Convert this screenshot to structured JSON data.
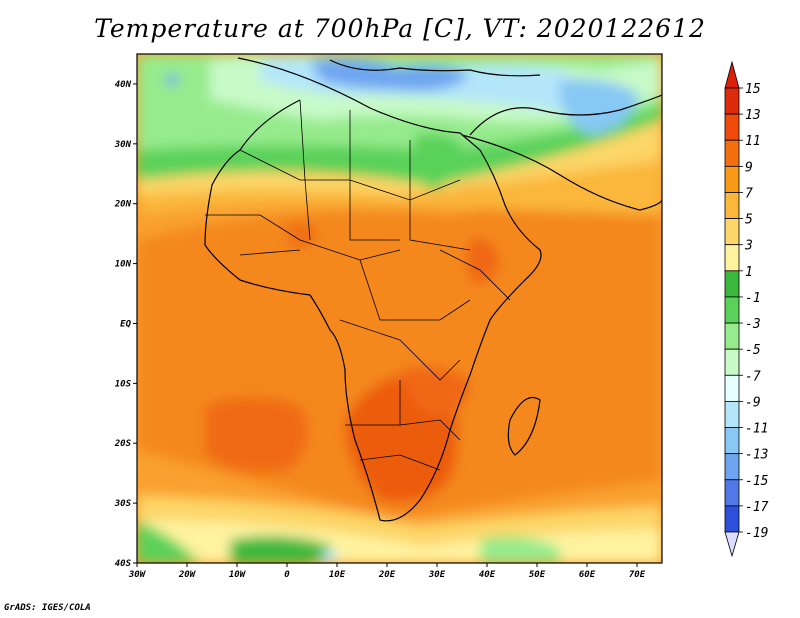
{
  "title": "Temperature at 700hPa [C], VT: 2020122612",
  "footer": "GrADS: IGES/COLA",
  "map": {
    "lon_range": [
      -30,
      75
    ],
    "lat_range": [
      -40,
      45
    ],
    "lon_ticks": [
      {
        "value": -30,
        "label": "30W"
      },
      {
        "value": -20,
        "label": "20W"
      },
      {
        "value": -10,
        "label": "10W"
      },
      {
        "value": 0,
        "label": "0"
      },
      {
        "value": 10,
        "label": "10E"
      },
      {
        "value": 20,
        "label": "20E"
      },
      {
        "value": 30,
        "label": "30E"
      },
      {
        "value": 40,
        "label": "40E"
      },
      {
        "value": 50,
        "label": "50E"
      },
      {
        "value": 60,
        "label": "60E"
      },
      {
        "value": 70,
        "label": "70E"
      }
    ],
    "lat_ticks": [
      {
        "value": 40,
        "label": "40N"
      },
      {
        "value": 30,
        "label": "30N"
      },
      {
        "value": 20,
        "label": "20N"
      },
      {
        "value": 10,
        "label": "10N"
      },
      {
        "value": 0,
        "label": "EQ"
      },
      {
        "value": -10,
        "label": "10S"
      },
      {
        "value": -20,
        "label": "20S"
      },
      {
        "value": -30,
        "label": "30S"
      },
      {
        "value": -40,
        "label": "40S"
      }
    ]
  },
  "colorbar": {
    "labels": [
      "15",
      "13",
      "11",
      "9",
      "7",
      "5",
      "3",
      "1",
      "-1",
      "-3",
      "-5",
      "-7",
      "-9",
      "-11",
      "-13",
      "-15",
      "-17",
      "-19"
    ],
    "colors_top_to_bottom": [
      "#a50f05",
      "#dc2c0c",
      "#f04a0c",
      "#f4700e",
      "#f99a16",
      "#fab73a",
      "#fcd668",
      "#fff3a0",
      "#3cb93c",
      "#5ad25a",
      "#96eb8c",
      "#c8fac8",
      "#e6ffff",
      "#b4e6fa",
      "#87c8f5",
      "#6ea5f0",
      "#5078e6",
      "#2d50dc",
      "#1e32be",
      "#141496",
      "#c8d2fa"
    ],
    "colors": {
      "overflow_top": "#dc1e0a",
      "underflow_bottom": "#dcdcff"
    }
  }
}
